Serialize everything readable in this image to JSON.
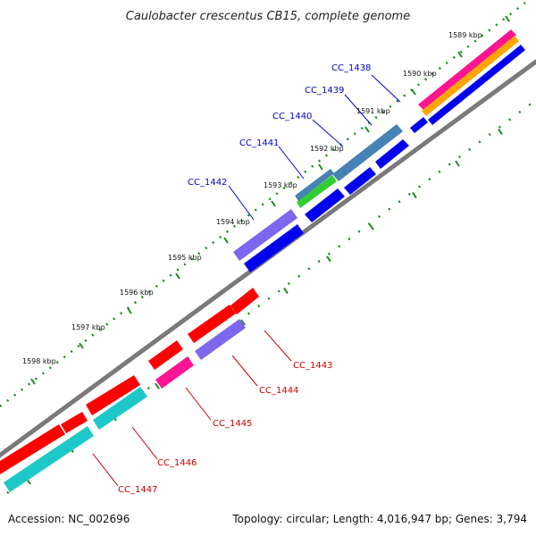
{
  "title": "Caulobacter crescentus CB15, complete genome",
  "accession": "Accession: NC_002696",
  "topology": "Topology: circular; Length: 4,016,947 bp; Genes: 3,794",
  "colors": {
    "backbone": "#7a7a7a",
    "dots": "#1f8a1f",
    "forward_label": "#0000cc",
    "reverse_label": "#cc0000",
    "red": "#ff0000",
    "blue": "#0000ee",
    "purple": "#7b68ee",
    "steel": "#4682b4",
    "green": "#32cd32",
    "magenta": "#ff1493",
    "cyan": "#1ec8c8",
    "orange": "#ffa500"
  },
  "kbp_ticks": [
    "1589 kbp",
    "1590 kbp",
    "1591 kbp",
    "1592 kbp",
    "1593 kbp",
    "1594 kbp",
    "1595 kbp",
    "1596 kbp",
    "1597 kbp",
    "1598 kbp"
  ],
  "forward_gene_labels": [
    "CC_1438",
    "CC_1439",
    "CC_1440",
    "CC_1441",
    "CC_1442"
  ],
  "reverse_gene_labels": [
    "CC_1443",
    "CC_1444",
    "CC_1445",
    "CC_1446",
    "CC_1447"
  ]
}
